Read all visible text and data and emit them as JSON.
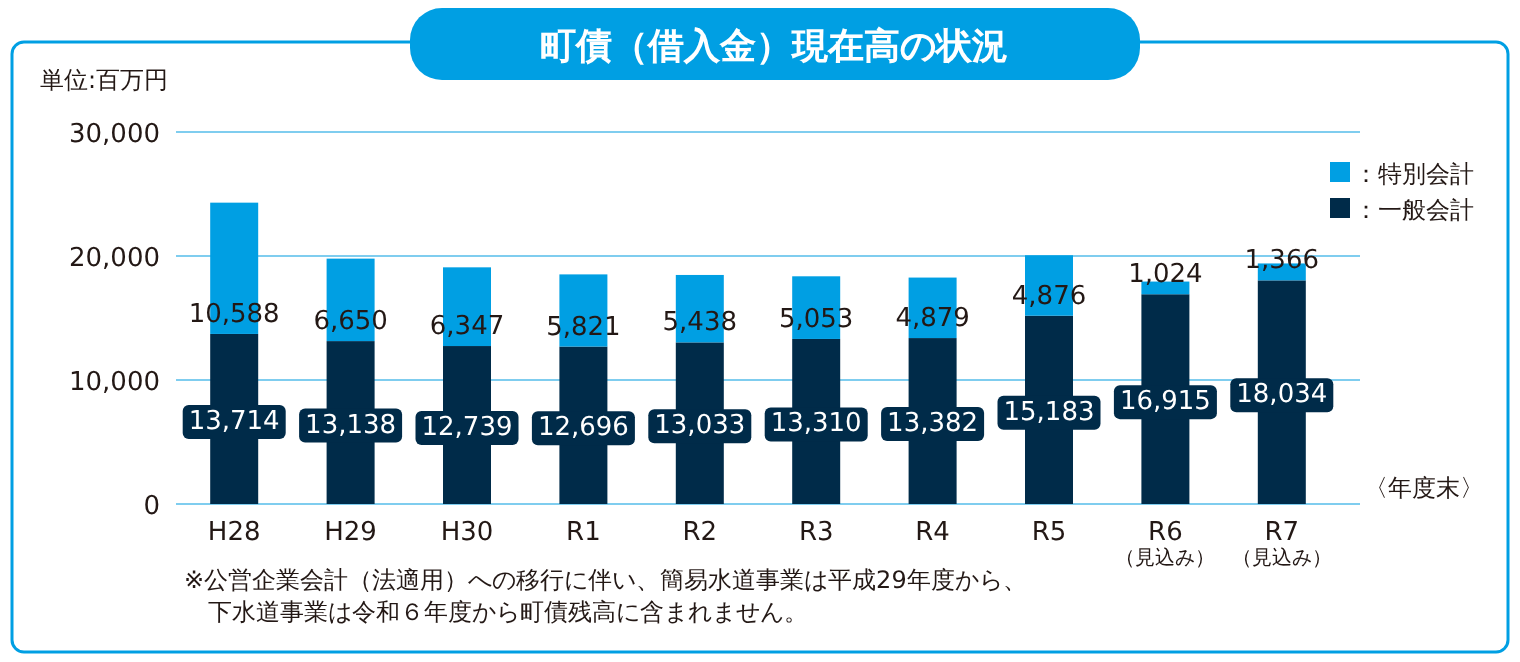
{
  "chart_data": {
    "type": "bar",
    "title": "町債（借入金）現在高の状況",
    "ylabel": "単位:百万円",
    "xlabel": "〈年度末〉",
    "categories": [
      "H28",
      "H29",
      "H30",
      "R1",
      "R2",
      "R3",
      "R4",
      "R5",
      "R6\n（見込み）",
      "R7\n（見込み）"
    ],
    "stacked": true,
    "grid": "y",
    "legend": "top right",
    "ylim": [
      0,
      30000
    ],
    "yticks": [
      {
        "value": 0,
        "label": "0"
      },
      {
        "value": 10000,
        "label": "10,000"
      },
      {
        "value": 20000,
        "label": "20,000"
      },
      {
        "value": 30000,
        "label": "30,000"
      }
    ],
    "series": [
      {
        "name": "：一般会計",
        "color": "#002b49",
        "values": [
          13714,
          13138,
          12739,
          12696,
          13033,
          13310,
          13382,
          15183,
          16915,
          18034
        ],
        "value_labels": [
          "13,714",
          "13,138",
          "12,739",
          "12,696",
          "13,033",
          "13,310",
          "13,382",
          "15,183",
          "16,915",
          "18,034"
        ]
      },
      {
        "name": "：特別会計",
        "color": "#009fe3",
        "values": [
          10588,
          6650,
          6347,
          5821,
          5438,
          5053,
          4879,
          4876,
          1024,
          1366
        ],
        "value_labels": [
          "10,588",
          "6,650",
          "6,347",
          "5,821",
          "5,438",
          "5,053",
          "4,879",
          "4,876",
          "1,024",
          "1,366"
        ]
      }
    ],
    "annotations": [
      "※公営企業会計（法適用）への移行に伴い、簡易水道事業は平成29年度から、",
      "下水道事業は令和６年度から町債残高に含まれません。"
    ]
  }
}
